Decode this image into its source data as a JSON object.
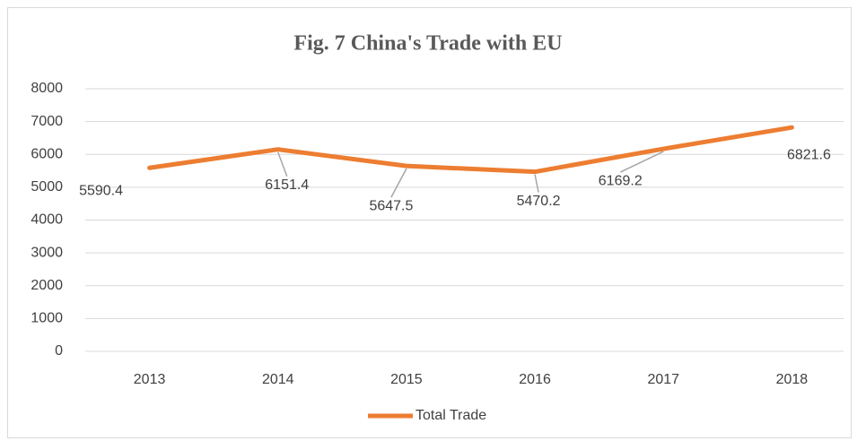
{
  "chart_data": {
    "type": "line",
    "title": "Fig. 7 China's Trade with EU",
    "categories": [
      "2013",
      "2014",
      "2015",
      "2016",
      "2017",
      "2018"
    ],
    "series": [
      {
        "name": "Total Trade",
        "color": "#ed7d31",
        "values": [
          5590.4,
          6151.4,
          5647.5,
          5470.2,
          6169.2,
          6821.6
        ]
      }
    ],
    "ylim": [
      0,
      8000
    ],
    "yticks": [
      0,
      1000,
      2000,
      3000,
      4000,
      5000,
      6000,
      7000,
      8000
    ],
    "grid": true,
    "legend": "bottom"
  }
}
